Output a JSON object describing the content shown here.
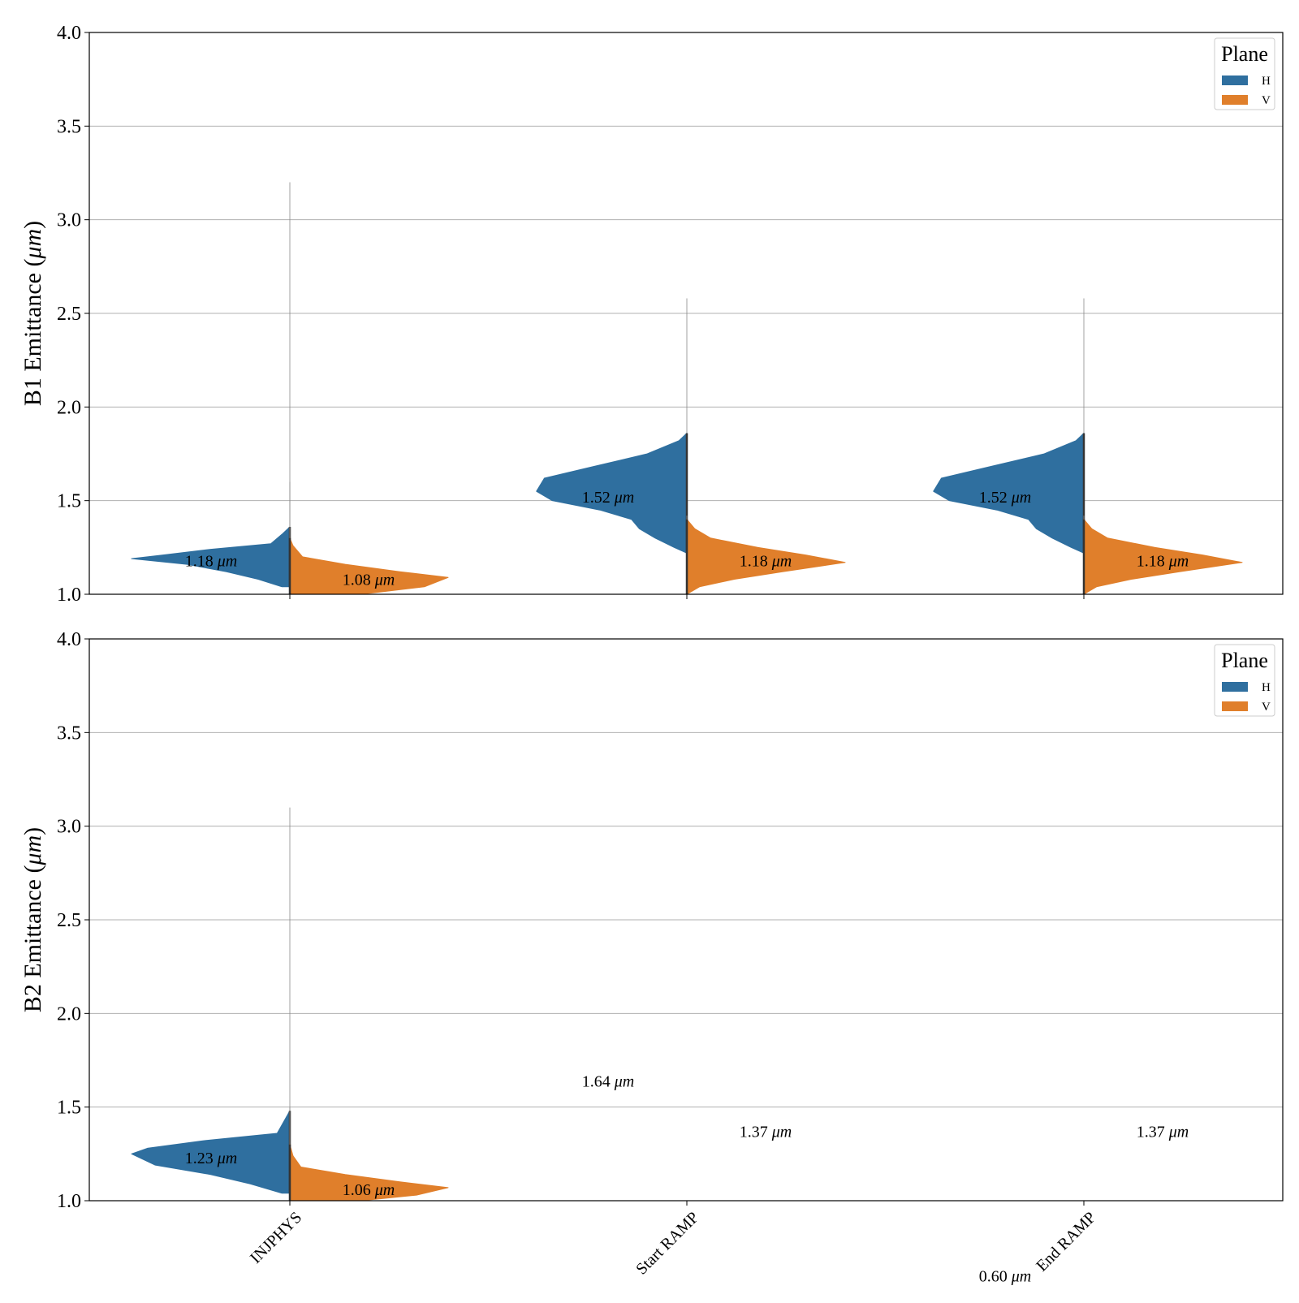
{
  "chart_data": [
    {
      "type": "violin",
      "ylabel": "B1 Emittance ($\\mu m$)",
      "ylim": [
        1.0,
        4.0
      ],
      "yticks": [
        1.0,
        1.5,
        2.0,
        2.5,
        3.0,
        3.5,
        4.0
      ],
      "grid": "horizontal",
      "categories": [
        "INJPHYS",
        "Start RAMP",
        "End RAMP"
      ],
      "legend": {
        "title": "Plane",
        "position": "top-right",
        "entries": [
          "H",
          "V"
        ]
      },
      "colors": {
        "H": "#2f6f9f",
        "V": "#e07f2b"
      },
      "series": [
        {
          "name": "H",
          "medians": [
            1.18,
            1.52,
            1.52
          ],
          "median_labels": [
            "1.18 μm",
            "1.52 μm",
            "1.52 μm"
          ],
          "range": [
            [
              1.0,
              3.2
            ],
            [
              1.2,
              2.58
            ],
            [
              1.2,
              2.58
            ]
          ],
          "profiles": [
            [
              [
                1.04,
                0.05
              ],
              [
                1.08,
                0.2
              ],
              [
                1.12,
                0.4
              ],
              [
                1.16,
                0.65
              ],
              [
                1.19,
                1.0
              ],
              [
                1.21,
                0.8
              ],
              [
                1.24,
                0.5
              ],
              [
                1.27,
                0.12
              ],
              [
                1.32,
                0.05
              ],
              [
                1.36,
                0.0
              ]
            ],
            [
              [
                1.22,
                0.0
              ],
              [
                1.25,
                0.08
              ],
              [
                1.3,
                0.2
              ],
              [
                1.35,
                0.3
              ],
              [
                1.4,
                0.35
              ],
              [
                1.45,
                0.55
              ],
              [
                1.5,
                0.85
              ],
              [
                1.55,
                0.95
              ],
              [
                1.62,
                0.9
              ],
              [
                1.68,
                0.6
              ],
              [
                1.75,
                0.25
              ],
              [
                1.82,
                0.05
              ],
              [
                1.86,
                0.0
              ]
            ],
            [
              [
                1.22,
                0.0
              ],
              [
                1.25,
                0.08
              ],
              [
                1.3,
                0.2
              ],
              [
                1.35,
                0.3
              ],
              [
                1.4,
                0.35
              ],
              [
                1.45,
                0.55
              ],
              [
                1.5,
                0.85
              ],
              [
                1.55,
                0.95
              ],
              [
                1.62,
                0.9
              ],
              [
                1.68,
                0.6
              ],
              [
                1.75,
                0.25
              ],
              [
                1.82,
                0.05
              ],
              [
                1.86,
                0.0
              ]
            ]
          ]
        },
        {
          "name": "V",
          "medians": [
            1.08,
            1.18,
            1.18
          ],
          "median_labels": [
            "1.08 μm",
            "1.18 μm",
            "1.18 μm"
          ],
          "range": [
            [
              1.0,
              1.6
            ],
            [
              1.0,
              1.42
            ],
            [
              1.0,
              1.42
            ]
          ],
          "profiles": [
            [
              [
                1.0,
                0.45
              ],
              [
                1.04,
                0.85
              ],
              [
                1.09,
                1.0
              ],
              [
                1.12,
                0.7
              ],
              [
                1.16,
                0.35
              ],
              [
                1.2,
                0.08
              ],
              [
                1.26,
                0.02
              ],
              [
                1.3,
                0.0
              ]
            ],
            [
              [
                1.0,
                0.0
              ],
              [
                1.04,
                0.08
              ],
              [
                1.08,
                0.3
              ],
              [
                1.12,
                0.6
              ],
              [
                1.17,
                1.0
              ],
              [
                1.21,
                0.75
              ],
              [
                1.25,
                0.45
              ],
              [
                1.3,
                0.15
              ],
              [
                1.35,
                0.05
              ],
              [
                1.4,
                0.0
              ]
            ],
            [
              [
                1.0,
                0.0
              ],
              [
                1.04,
                0.08
              ],
              [
                1.08,
                0.3
              ],
              [
                1.12,
                0.6
              ],
              [
                1.17,
                1.0
              ],
              [
                1.21,
                0.75
              ],
              [
                1.25,
                0.45
              ],
              [
                1.3,
                0.15
              ],
              [
                1.35,
                0.05
              ],
              [
                1.4,
                0.0
              ]
            ]
          ]
        }
      ]
    },
    {
      "type": "violin",
      "ylabel": "B2 Emittance ($\\mu m$)",
      "ylim": [
        1.0,
        4.0
      ],
      "yticks": [
        1.0,
        1.5,
        2.0,
        2.5,
        3.0,
        3.5,
        4.0
      ],
      "grid": "horizontal",
      "categories": [
        "INJPHYS",
        "Start RAMP",
        "End RAMP"
      ],
      "legend": {
        "title": "Plane",
        "position": "top-right",
        "entries": [
          "H",
          "V"
        ]
      },
      "colors": {
        "H": "#2f6f9f",
        "V": "#e07f2b"
      },
      "series": [
        {
          "name": "H",
          "medians": [
            1.23,
            1.64,
            0.6
          ],
          "median_labels": [
            "1.23 μm",
            "1.64 μm",
            "0.60 μm"
          ],
          "range": [
            [
              1.0,
              3.1
            ],
            null,
            null
          ],
          "profiles": [
            [
              [
                1.04,
                0.05
              ],
              [
                1.09,
                0.25
              ],
              [
                1.14,
                0.5
              ],
              [
                1.19,
                0.85
              ],
              [
                1.25,
                1.0
              ],
              [
                1.28,
                0.9
              ],
              [
                1.32,
                0.55
              ],
              [
                1.36,
                0.08
              ],
              [
                1.42,
                0.04
              ],
              [
                1.48,
                0.0
              ]
            ],
            [],
            []
          ]
        },
        {
          "name": "V",
          "medians": [
            1.06,
            1.37,
            1.37
          ],
          "median_labels": [
            "1.06 μm",
            "1.37 μm",
            "1.37 μm"
          ],
          "range": [
            [
              1.0,
              1.5
            ],
            null,
            null
          ],
          "profiles": [
            [
              [
                1.0,
                0.45
              ],
              [
                1.03,
                0.8
              ],
              [
                1.07,
                1.0
              ],
              [
                1.1,
                0.7
              ],
              [
                1.14,
                0.35
              ],
              [
                1.18,
                0.07
              ],
              [
                1.24,
                0.02
              ],
              [
                1.3,
                0.0
              ]
            ],
            [],
            []
          ]
        }
      ]
    }
  ]
}
